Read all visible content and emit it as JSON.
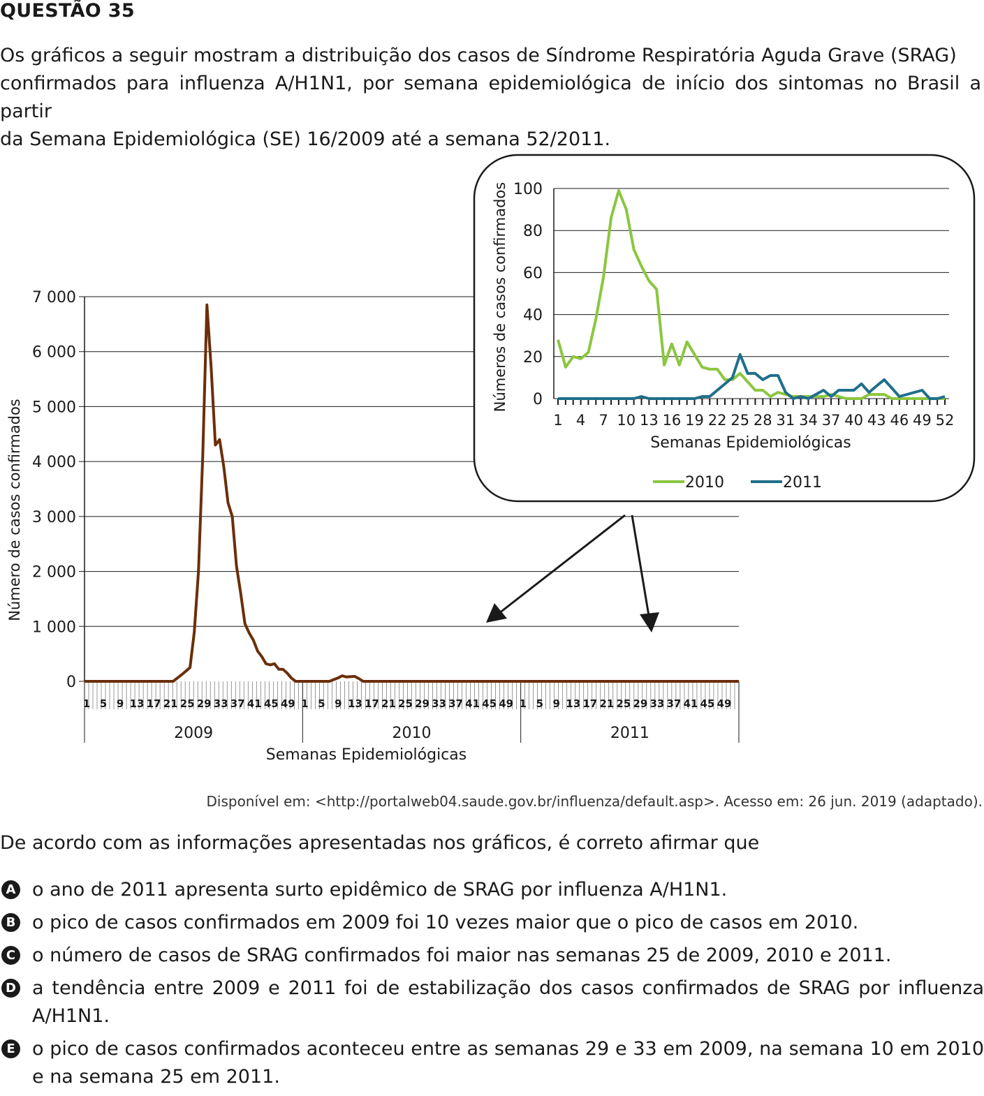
{
  "title": "QUESTÃO 35",
  "intro_lines": [
    "Os gráficos a seguir mostram a distribuição dos casos de Síndrome Respiratória Aguda Grave (SRAG)",
    "confirmados para influenza A/H1N1, por semana epidemiológica de início dos sintomas no Brasil a partir",
    "da Semana Epidemiológica (SE) 16/2009 até a semana 52/2011."
  ],
  "source": "Disponível em: <http://portalweb04.saude.gov.br/influenza/default.asp>. Acesso em: 26 jun. 2019 (adaptado).",
  "question": "De acordo com as informações apresentadas nos gráficos, é correto afirmar que",
  "options": [
    {
      "letter": "A",
      "text": "o ano de 2011 apresenta surto epidêmico de SRAG por influenza A/H1N1."
    },
    {
      "letter": "B",
      "text": "o pico de casos confirmados em 2009 foi 10 vezes maior que o pico de casos em 2010."
    },
    {
      "letter": "C",
      "text": "o número de casos de SRAG confirmados foi maior nas semanas 25 de 2009, 2010 e 2011."
    },
    {
      "letter": "D",
      "text": "a tendência entre 2009 e 2011 foi de estabilização dos casos confirmados de SRAG por influenza A/H1N1."
    },
    {
      "letter": "E",
      "text": "o pico de casos confirmados aconteceu entre as semanas 29 e 33 em 2009, na semana 10 em 2010 e na semana 25 em 2011."
    }
  ],
  "colors": {
    "main_line": "#6b2e0a",
    "series_2010": "#8cc63f",
    "series_2011": "#1f6f8b",
    "grid": "#1a1a1a"
  },
  "chart_data": [
    {
      "type": "line",
      "ylabel": "Número de casos confirmados",
      "xlabel": "Semanas Epidemiológicas",
      "ylim": [
        0,
        7000
      ],
      "yticks": [
        0,
        1000,
        2000,
        3000,
        4000,
        5000,
        6000,
        7000
      ],
      "ytick_labels": [
        "0",
        "1 000",
        "2 000",
        "3 000",
        "4 000",
        "5 000",
        "6 000",
        "7 000"
      ],
      "years": [
        "2009",
        "2010",
        "2011"
      ],
      "week_tick_labels": [
        "1",
        "5",
        "9",
        "13",
        "17",
        "21",
        "25",
        "29",
        "33",
        "37",
        "41",
        "45",
        "49"
      ],
      "grid": true,
      "series": [
        {
          "points": [
            [
              1,
              0
            ],
            [
              22,
              0
            ],
            [
              24,
              120
            ],
            [
              26,
              250
            ],
            [
              27,
              900
            ],
            [
              28,
              2000
            ],
            [
              29,
              4100
            ],
            [
              30,
              6850
            ],
            [
              31,
              5700
            ],
            [
              32,
              4300
            ],
            [
              33,
              4400
            ],
            [
              34,
              3900
            ],
            [
              35,
              3250
            ],
            [
              36,
              3000
            ],
            [
              37,
              2100
            ],
            [
              38,
              1600
            ],
            [
              39,
              1050
            ],
            [
              40,
              880
            ],
            [
              41,
              750
            ],
            [
              42,
              550
            ],
            [
              43,
              450
            ],
            [
              44,
              320
            ],
            [
              45,
              300
            ],
            [
              46,
              320
            ],
            [
              47,
              220
            ],
            [
              48,
              220
            ],
            [
              49,
              150
            ],
            [
              50,
              60
            ],
            [
              51,
              0
            ],
            [
              53,
              0
            ],
            [
              59,
              0
            ],
            [
              61,
              60
            ],
            [
              62,
              100
            ],
            [
              63,
              80
            ],
            [
              65,
              90
            ],
            [
              66,
              50
            ],
            [
              67,
              0
            ],
            [
              156,
              0
            ]
          ]
        }
      ]
    },
    {
      "type": "line",
      "ylabel": "Números de casos confirmados",
      "xlabel": "Semanas Epidemiológicas",
      "ylim": [
        0,
        100
      ],
      "yticks": [
        0,
        20,
        40,
        60,
        80,
        100
      ],
      "xticks": [
        1,
        4,
        7,
        10,
        13,
        16,
        19,
        22,
        25,
        28,
        31,
        34,
        37,
        40,
        43,
        46,
        49,
        52
      ],
      "xlim": [
        1,
        52
      ],
      "legend_position": "bottom",
      "grid": true,
      "series": [
        {
          "name": "2010",
          "x": [
            1,
            2,
            3,
            4,
            5,
            6,
            7,
            8,
            9,
            10,
            11,
            12,
            13,
            14,
            15,
            16,
            17,
            18,
            19,
            20,
            21,
            22,
            23,
            24,
            25,
            26,
            27,
            28,
            29,
            30,
            31,
            32,
            33,
            34,
            35,
            36,
            37,
            38,
            39,
            40,
            41,
            42,
            43,
            44,
            45,
            46,
            47,
            48,
            49,
            50,
            51,
            52
          ],
          "values": [
            28,
            15,
            20,
            19,
            22,
            38,
            58,
            86,
            99,
            90,
            71,
            63,
            56,
            52,
            16,
            26,
            16,
            27,
            21,
            15,
            14,
            14,
            9,
            9,
            12,
            8,
            4,
            4,
            1,
            3,
            2,
            1,
            1,
            1,
            1,
            1,
            2,
            1,
            0,
            0,
            0,
            2,
            2,
            2,
            0,
            0,
            0,
            0,
            0,
            0,
            0,
            0
          ]
        },
        {
          "name": "2011",
          "x": [
            1,
            2,
            3,
            4,
            5,
            6,
            7,
            8,
            9,
            10,
            11,
            12,
            13,
            14,
            15,
            16,
            17,
            18,
            19,
            20,
            21,
            22,
            23,
            24,
            25,
            26,
            27,
            28,
            29,
            30,
            31,
            32,
            33,
            34,
            35,
            36,
            37,
            38,
            39,
            40,
            41,
            42,
            43,
            44,
            45,
            46,
            47,
            48,
            49,
            50,
            51,
            52
          ],
          "values": [
            0,
            0,
            0,
            0,
            0,
            0,
            0,
            0,
            0,
            0,
            0,
            1,
            0,
            0,
            0,
            0,
            0,
            0,
            0,
            1,
            1,
            4,
            7,
            10,
            21,
            12,
            12,
            9,
            11,
            11,
            3,
            0,
            1,
            0,
            2,
            4,
            1,
            4,
            4,
            4,
            7,
            3,
            6,
            9,
            5,
            1,
            2,
            3,
            4,
            0,
            0,
            1
          ]
        }
      ]
    }
  ]
}
